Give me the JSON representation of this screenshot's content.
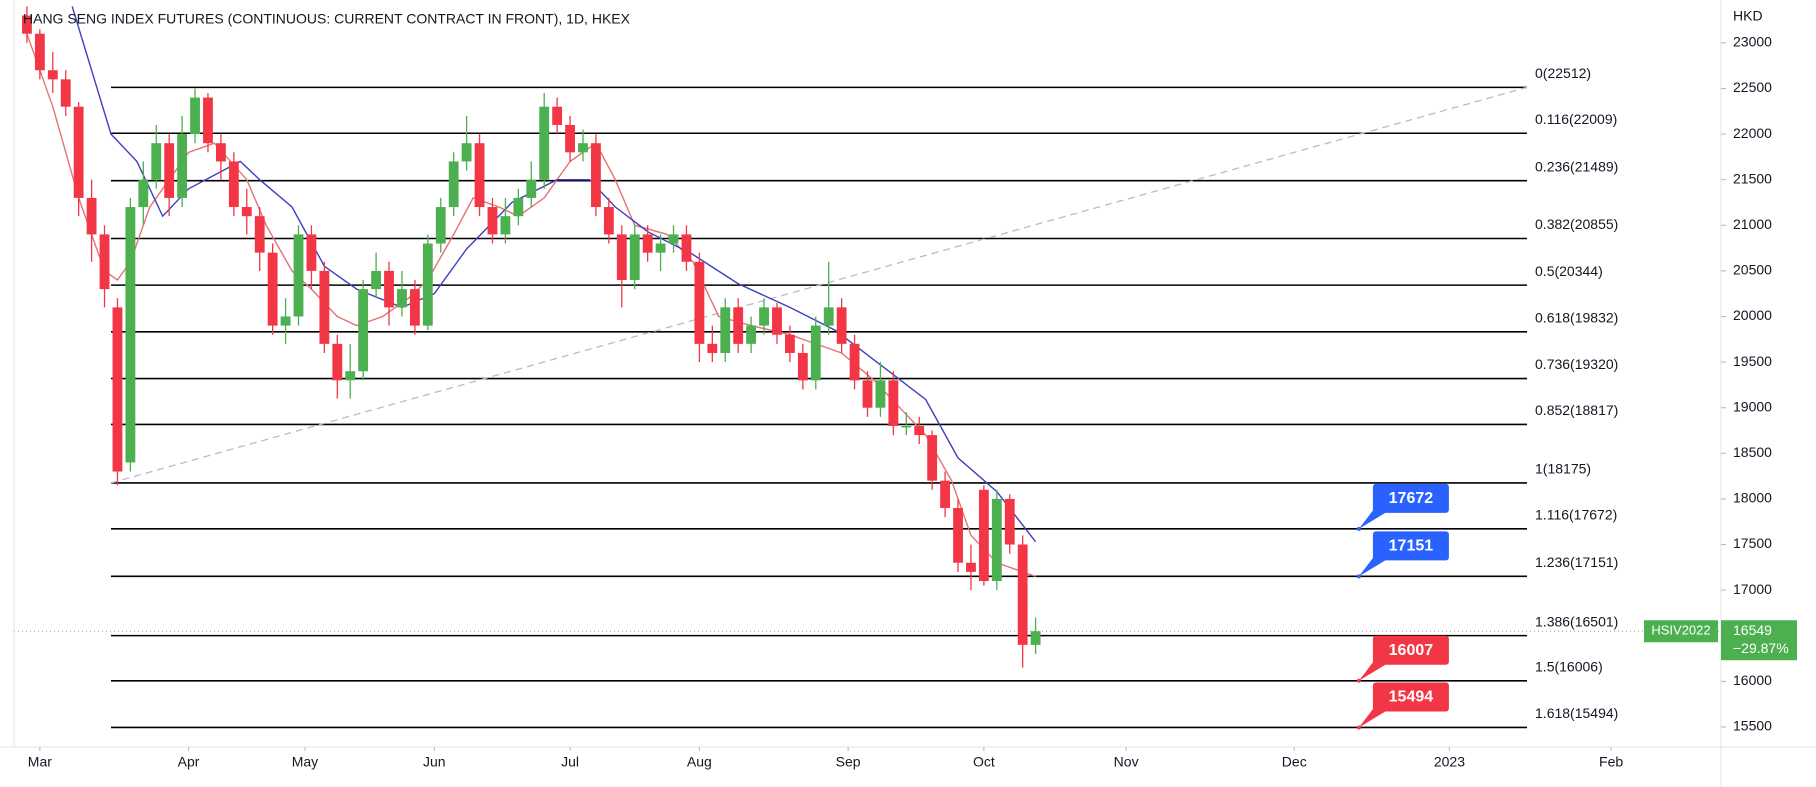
{
  "chart_data": {
    "type": "candlestick",
    "title": "HANG SENG INDEX FUTURES (CONTINUOUS: CURRENT CONTRACT IN FRONT), 1D, HKEX",
    "y_label": "HKD",
    "up_color": "#4caf50",
    "down_color": "#f23645",
    "grid": false,
    "xlim": [
      -4,
      260
    ],
    "ylim": [
      15280,
      23470
    ],
    "yticks": [
      15500,
      16000,
      16500,
      17000,
      17500,
      18000,
      18500,
      19000,
      19500,
      20000,
      20500,
      21000,
      21500,
      22000,
      22500,
      23000
    ],
    "xticks": [
      {
        "value": 0,
        "label": "Mar"
      },
      {
        "value": 23,
        "label": "Apr"
      },
      {
        "value": 41,
        "label": "May"
      },
      {
        "value": 61,
        "label": "Jun"
      },
      {
        "value": 82,
        "label": "Jul"
      },
      {
        "value": 102,
        "label": "Aug"
      },
      {
        "value": 125,
        "label": "Sep"
      },
      {
        "value": 146,
        "label": "Oct"
      },
      {
        "value": 168,
        "label": "Nov"
      },
      {
        "value": 194,
        "label": "Dec"
      },
      {
        "value": 218,
        "label": "2023"
      },
      {
        "value": 243,
        "label": "Feb"
      }
    ],
    "candles": [
      {
        "x": -2,
        "o": 23300,
        "h": 23400,
        "l": 23000,
        "c": 23100
      },
      {
        "x": 0,
        "o": 23100,
        "h": 23150,
        "l": 22600,
        "c": 22700
      },
      {
        "x": 2,
        "o": 22700,
        "h": 22900,
        "l": 22450,
        "c": 22600
      },
      {
        "x": 4,
        "o": 22600,
        "h": 22700,
        "l": 22200,
        "c": 22300
      },
      {
        "x": 6,
        "o": 22300,
        "h": 22350,
        "l": 21100,
        "c": 21300
      },
      {
        "x": 8,
        "o": 21300,
        "h": 21500,
        "l": 20600,
        "c": 20900
      },
      {
        "x": 10,
        "o": 20900,
        "h": 21000,
        "l": 20100,
        "c": 20300
      },
      {
        "x": 12,
        "o": 20100,
        "h": 20200,
        "l": 18150,
        "c": 18300
      },
      {
        "x": 14,
        "o": 18400,
        "h": 21300,
        "l": 18300,
        "c": 21200
      },
      {
        "x": 16,
        "o": 21200,
        "h": 21700,
        "l": 21000,
        "c": 21500
      },
      {
        "x": 18,
        "o": 21500,
        "h": 22100,
        "l": 21400,
        "c": 21900
      },
      {
        "x": 20,
        "o": 21900,
        "h": 22000,
        "l": 21100,
        "c": 21300
      },
      {
        "x": 22,
        "o": 21300,
        "h": 22200,
        "l": 21200,
        "c": 22000
      },
      {
        "x": 24,
        "o": 22000,
        "h": 22500,
        "l": 21900,
        "c": 22400
      },
      {
        "x": 26,
        "o": 22400,
        "h": 22450,
        "l": 21800,
        "c": 21900
      },
      {
        "x": 28,
        "o": 21900,
        "h": 22000,
        "l": 21500,
        "c": 21700
      },
      {
        "x": 30,
        "o": 21700,
        "h": 21800,
        "l": 21100,
        "c": 21200
      },
      {
        "x": 32,
        "o": 21200,
        "h": 21400,
        "l": 20900,
        "c": 21100
      },
      {
        "x": 34,
        "o": 21100,
        "h": 21200,
        "l": 20500,
        "c": 20700
      },
      {
        "x": 36,
        "o": 20700,
        "h": 20800,
        "l": 19800,
        "c": 19900
      },
      {
        "x": 38,
        "o": 19900,
        "h": 20200,
        "l": 19700,
        "c": 20000
      },
      {
        "x": 40,
        "o": 20000,
        "h": 21000,
        "l": 19900,
        "c": 20900
      },
      {
        "x": 42,
        "o": 20900,
        "h": 21000,
        "l": 20300,
        "c": 20500
      },
      {
        "x": 44,
        "o": 20500,
        "h": 20600,
        "l": 19600,
        "c": 19700
      },
      {
        "x": 46,
        "o": 19700,
        "h": 19800,
        "l": 19100,
        "c": 19300
      },
      {
        "x": 48,
        "o": 19300,
        "h": 19700,
        "l": 19100,
        "c": 19400
      },
      {
        "x": 50,
        "o": 19400,
        "h": 20400,
        "l": 19300,
        "c": 20300
      },
      {
        "x": 52,
        "o": 20300,
        "h": 20700,
        "l": 20200,
        "c": 20500
      },
      {
        "x": 54,
        "o": 20500,
        "h": 20600,
        "l": 19900,
        "c": 20100
      },
      {
        "x": 56,
        "o": 20100,
        "h": 20500,
        "l": 20000,
        "c": 20300
      },
      {
        "x": 58,
        "o": 20300,
        "h": 20400,
        "l": 19800,
        "c": 19900
      },
      {
        "x": 60,
        "o": 19900,
        "h": 20900,
        "l": 19850,
        "c": 20800
      },
      {
        "x": 62,
        "o": 20800,
        "h": 21300,
        "l": 20700,
        "c": 21200
      },
      {
        "x": 64,
        "o": 21200,
        "h": 21800,
        "l": 21100,
        "c": 21700
      },
      {
        "x": 66,
        "o": 21700,
        "h": 22200,
        "l": 21600,
        "c": 21900
      },
      {
        "x": 68,
        "o": 21900,
        "h": 22000,
        "l": 21100,
        "c": 21200
      },
      {
        "x": 70,
        "o": 21200,
        "h": 21300,
        "l": 20800,
        "c": 20900
      },
      {
        "x": 72,
        "o": 20900,
        "h": 21300,
        "l": 20800,
        "c": 21100
      },
      {
        "x": 74,
        "o": 21100,
        "h": 21400,
        "l": 21000,
        "c": 21300
      },
      {
        "x": 76,
        "o": 21300,
        "h": 21700,
        "l": 21200,
        "c": 21500
      },
      {
        "x": 78,
        "o": 21500,
        "h": 22450,
        "l": 21400,
        "c": 22300
      },
      {
        "x": 80,
        "o": 22300,
        "h": 22400,
        "l": 22000,
        "c": 22100
      },
      {
        "x": 82,
        "o": 22100,
        "h": 22200,
        "l": 21700,
        "c": 21800
      },
      {
        "x": 84,
        "o": 21800,
        "h": 22050,
        "l": 21700,
        "c": 21900
      },
      {
        "x": 86,
        "o": 21900,
        "h": 22000,
        "l": 21100,
        "c": 21200
      },
      {
        "x": 88,
        "o": 21200,
        "h": 21300,
        "l": 20800,
        "c": 20900
      },
      {
        "x": 90,
        "o": 20900,
        "h": 21000,
        "l": 20100,
        "c": 20400
      },
      {
        "x": 92,
        "o": 20400,
        "h": 21000,
        "l": 20300,
        "c": 20900
      },
      {
        "x": 94,
        "o": 20900,
        "h": 21000,
        "l": 20600,
        "c": 20700
      },
      {
        "x": 96,
        "o": 20700,
        "h": 20900,
        "l": 20500,
        "c": 20800
      },
      {
        "x": 98,
        "o": 20800,
        "h": 21000,
        "l": 20700,
        "c": 20900
      },
      {
        "x": 100,
        "o": 20900,
        "h": 21000,
        "l": 20500,
        "c": 20600
      },
      {
        "x": 102,
        "o": 20600,
        "h": 20700,
        "l": 19500,
        "c": 19700
      },
      {
        "x": 104,
        "o": 19700,
        "h": 19900,
        "l": 19500,
        "c": 19600
      },
      {
        "x": 106,
        "o": 19600,
        "h": 20200,
        "l": 19500,
        "c": 20100
      },
      {
        "x": 108,
        "o": 20100,
        "h": 20200,
        "l": 19600,
        "c": 19700
      },
      {
        "x": 110,
        "o": 19700,
        "h": 20000,
        "l": 19600,
        "c": 19900
      },
      {
        "x": 112,
        "o": 19900,
        "h": 20200,
        "l": 19800,
        "c": 20100
      },
      {
        "x": 114,
        "o": 20100,
        "h": 20150,
        "l": 19700,
        "c": 19800
      },
      {
        "x": 116,
        "o": 19800,
        "h": 19900,
        "l": 19500,
        "c": 19600
      },
      {
        "x": 118,
        "o": 19600,
        "h": 19700,
        "l": 19200,
        "c": 19300
      },
      {
        "x": 120,
        "o": 19300,
        "h": 20000,
        "l": 19200,
        "c": 19900
      },
      {
        "x": 122,
        "o": 19900,
        "h": 20600,
        "l": 19800,
        "c": 20100
      },
      {
        "x": 124,
        "o": 20100,
        "h": 20200,
        "l": 19600,
        "c": 19700
      },
      {
        "x": 126,
        "o": 19700,
        "h": 19800,
        "l": 19200,
        "c": 19300
      },
      {
        "x": 128,
        "o": 19300,
        "h": 19400,
        "l": 18900,
        "c": 19000
      },
      {
        "x": 130,
        "o": 19000,
        "h": 19500,
        "l": 18900,
        "c": 19300
      },
      {
        "x": 132,
        "o": 19300,
        "h": 19400,
        "l": 18700,
        "c": 18800
      },
      {
        "x": 134,
        "o": 18800,
        "h": 18950,
        "l": 18700,
        "c": 18800
      },
      {
        "x": 136,
        "o": 18800,
        "h": 18900,
        "l": 18600,
        "c": 18700
      },
      {
        "x": 138,
        "o": 18700,
        "h": 18750,
        "l": 18100,
        "c": 18200
      },
      {
        "x": 140,
        "o": 18200,
        "h": 18300,
        "l": 17800,
        "c": 17900
      },
      {
        "x": 142,
        "o": 17900,
        "h": 18000,
        "l": 17200,
        "c": 17300
      },
      {
        "x": 144,
        "o": 17300,
        "h": 17500,
        "l": 17000,
        "c": 17200
      },
      {
        "x": 146,
        "o": 18100,
        "h": 18150,
        "l": 17050,
        "c": 17100
      },
      {
        "x": 148,
        "o": 17100,
        "h": 18100,
        "l": 17000,
        "c": 18000
      },
      {
        "x": 150,
        "o": 18000,
        "h": 18050,
        "l": 17400,
        "c": 17500
      },
      {
        "x": 152,
        "o": 17500,
        "h": 17600,
        "l": 16150,
        "c": 16400
      },
      {
        "x": 154,
        "o": 16400,
        "h": 16700,
        "l": 16300,
        "c": 16549
      }
    ],
    "moving_averages": [
      {
        "color": "#e57373",
        "x": [
          -2,
          2,
          6,
          10,
          12,
          14,
          17,
          23,
          27,
          32,
          35,
          39,
          42,
          46,
          49,
          53,
          57,
          60,
          64,
          67,
          71,
          74,
          78,
          82,
          86,
          89,
          92,
          97,
          101,
          105,
          110,
          116,
          120,
          124,
          129,
          133,
          137,
          141,
          144,
          148,
          154
        ],
        "values": [
          23100,
          22300,
          21300,
          20500,
          20400,
          20600,
          21200,
          21800,
          21900,
          21500,
          21000,
          20500,
          20300,
          20000,
          19900,
          20000,
          20200,
          20400,
          20900,
          21300,
          21200,
          21100,
          21300,
          21700,
          21900,
          21500,
          21000,
          20900,
          20600,
          20000,
          19900,
          19800,
          19700,
          19600,
          19300,
          19000,
          18700,
          18200,
          17600,
          17300,
          17150
        ]
      },
      {
        "color": "#3f3fbf",
        "x": [
          5,
          11,
          15,
          19,
          23,
          31,
          34,
          39,
          44,
          49,
          56,
          61,
          66,
          73,
          80,
          85,
          89,
          94,
          101,
          108,
          116,
          123,
          130,
          137,
          142,
          148,
          154
        ],
        "values": [
          23400,
          22000,
          21700,
          21100,
          21400,
          21700,
          21500,
          21200,
          20550,
          20300,
          20100,
          20250,
          20740,
          21250,
          21500,
          21500,
          21200,
          20930,
          20680,
          20360,
          20100,
          19850,
          19470,
          19090,
          18450,
          18080,
          17530
        ]
      }
    ],
    "fib_levels": {
      "x": [
        11,
        230
      ],
      "labels": [
        "0(22512)",
        "0.116(22009)",
        "0.236(21489)",
        "0.382(20855)",
        "0.5(20344)",
        "0.618(19832)",
        "0.736(19320)",
        "0.852(18817)",
        "1(18175)",
        "1.116(17672)",
        "1.236(17151)",
        "1.386(16501)",
        "1.5(16006)",
        "1.618(15494)"
      ],
      "values": [
        22512,
        22009,
        21489,
        20855,
        20344,
        19832,
        19320,
        18817,
        18175,
        17672,
        17151,
        16501,
        16006,
        15494
      ]
    },
    "trend_line": {
      "x": [
        11,
        230
      ],
      "y": [
        18175,
        22512
      ]
    },
    "callouts": {
      "x": 204,
      "values": [
        17672,
        17151,
        16007,
        15494
      ],
      "colors": [
        "#2962ff",
        "#2962ff",
        "#f23645",
        "#f23645"
      ]
    },
    "last_price": {
      "symbol": "HSIV2022",
      "value": 16549,
      "change": -29.87,
      "change_label": "−29.87%",
      "color": "#4caf50"
    }
  }
}
